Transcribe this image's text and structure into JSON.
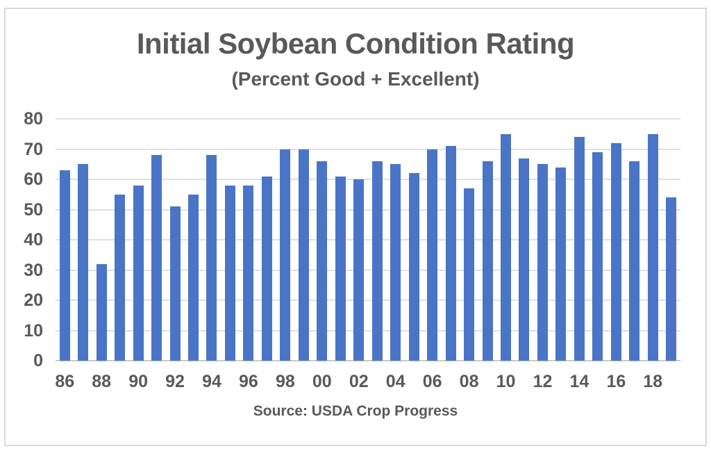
{
  "chart_data": {
    "type": "bar",
    "title": "Initial Soybean Condition Rating",
    "subtitle": "(Percent Good + Excellent)",
    "source": "Source: USDA Crop Progress",
    "categories": [
      "86",
      "87",
      "88",
      "89",
      "90",
      "91",
      "92",
      "93",
      "94",
      "95",
      "96",
      "97",
      "98",
      "99",
      "00",
      "01",
      "02",
      "03",
      "04",
      "05",
      "06",
      "07",
      "08",
      "09",
      "10",
      "11",
      "12",
      "13",
      "14",
      "15",
      "16",
      "17",
      "18",
      "19"
    ],
    "values": [
      63,
      65,
      32,
      55,
      58,
      68,
      51,
      55,
      68,
      58,
      58,
      61,
      70,
      70,
      66,
      61,
      60,
      66,
      65,
      62,
      70,
      71,
      57,
      66,
      75,
      67,
      65,
      64,
      74,
      69,
      72,
      66,
      75,
      54
    ],
    "x_tick_labels": [
      "86",
      "88",
      "90",
      "92",
      "94",
      "96",
      "98",
      "00",
      "02",
      "04",
      "06",
      "08",
      "10",
      "12",
      "14",
      "16",
      "18"
    ],
    "y_ticks": [
      0,
      10,
      20,
      30,
      40,
      50,
      60,
      70,
      80
    ],
    "ylim": [
      0,
      80
    ],
    "xlabel": "",
    "ylabel": "",
    "grid": "horizontal",
    "legend": "none",
    "colors": {
      "bar": "#4a74c6",
      "text": "#595959",
      "gridline": "#e0e0e0",
      "axis_line": "#c9c9c9",
      "frame_border": "#d9d9d9",
      "background": "#ffffff"
    }
  }
}
